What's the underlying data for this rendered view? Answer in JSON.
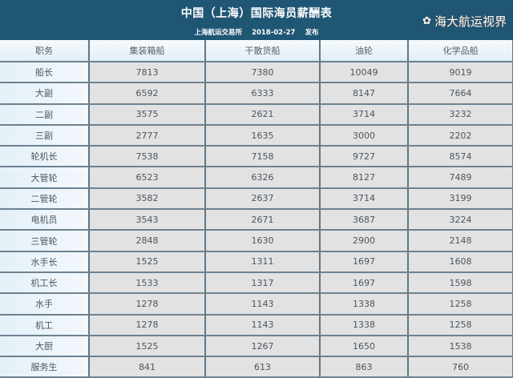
{
  "header": {
    "title": "中国（上海）国际海员薪酬表",
    "publisher": "上海航运交易所",
    "date": "2018-02-27",
    "publish_label": "发布"
  },
  "table": {
    "columns": [
      "职务",
      "集装箱船",
      "干散货船",
      "油轮",
      "化学品船"
    ],
    "rows": [
      [
        "船长",
        "7813",
        "7380",
        "10049",
        "9019"
      ],
      [
        "大副",
        "6592",
        "6333",
        "8147",
        "7664"
      ],
      [
        "二副",
        "3575",
        "2621",
        "3714",
        "3232"
      ],
      [
        "三副",
        "2777",
        "1635",
        "3000",
        "2202"
      ],
      [
        "轮机长",
        "7538",
        "7158",
        "9727",
        "8574"
      ],
      [
        "大管轮",
        "6523",
        "6326",
        "8127",
        "7489"
      ],
      [
        "二管轮",
        "3582",
        "2637",
        "3714",
        "3199"
      ],
      [
        "电机员",
        "3543",
        "2671",
        "3687",
        "3224"
      ],
      [
        "三管轮",
        "2848",
        "1630",
        "2900",
        "2148"
      ],
      [
        "水手长",
        "1525",
        "1311",
        "1697",
        "1608"
      ],
      [
        "机工长",
        "1533",
        "1317",
        "1697",
        "1598"
      ],
      [
        "水手",
        "1278",
        "1143",
        "1338",
        "1258"
      ],
      [
        "机工",
        "1278",
        "1143",
        "1338",
        "1258"
      ],
      [
        "大厨",
        "1525",
        "1267",
        "1650",
        "1538"
      ],
      [
        "服务生",
        "841",
        "613",
        "863",
        "760"
      ]
    ]
  },
  "watermark": {
    "text": "海大航运视界",
    "icon": "wechat-icon"
  }
}
